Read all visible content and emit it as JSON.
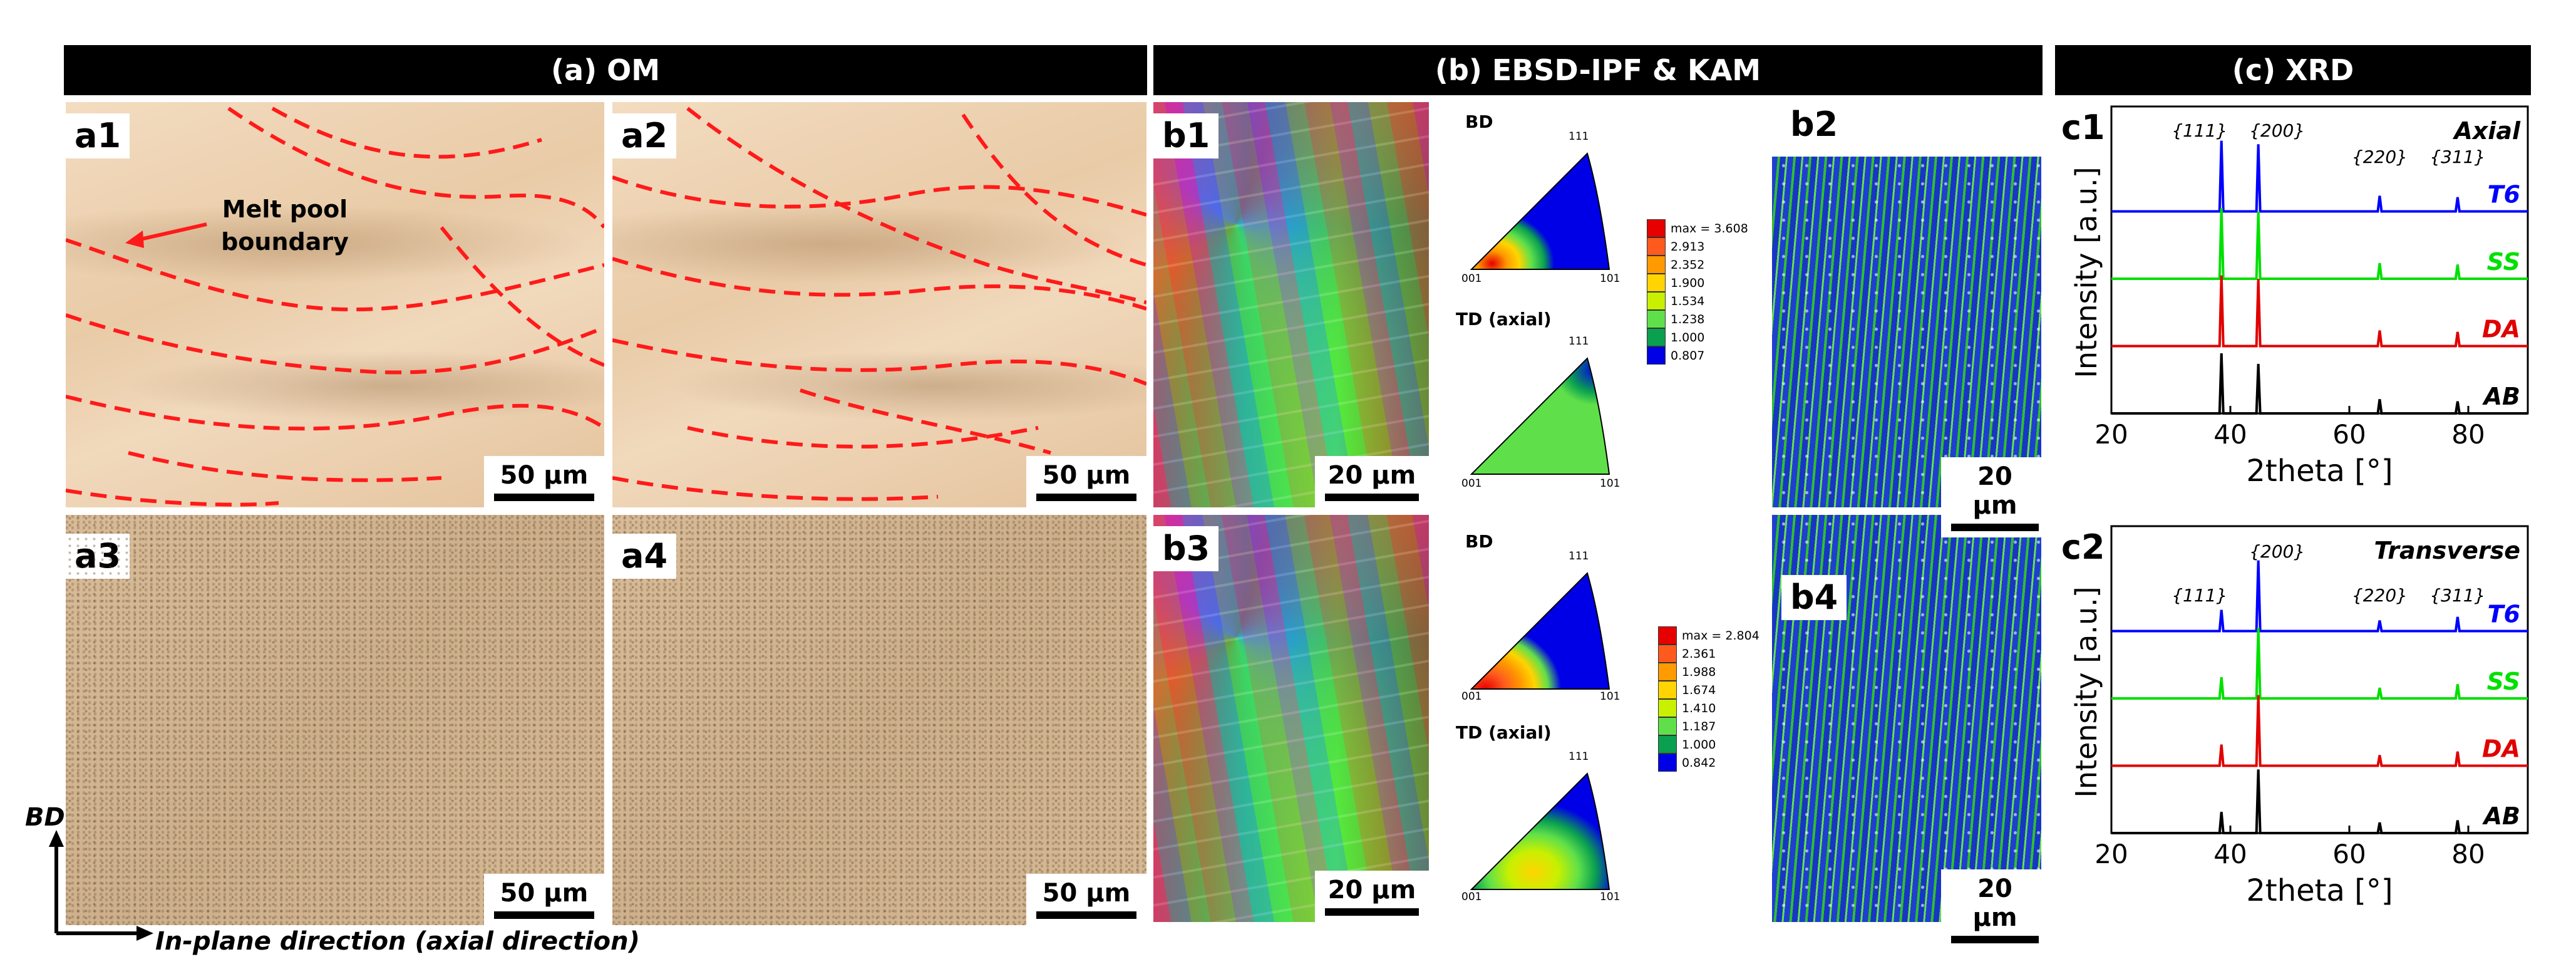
{
  "headers": {
    "om": "(a) OM",
    "ebsd": "(b) EBSD-IPF & KAM",
    "xrd": "(c) XRD"
  },
  "panels": {
    "a1": "a1",
    "a2": "a2",
    "a3": "a3",
    "a4": "a4",
    "b1": "b1",
    "b2": "b2",
    "b3": "b3",
    "b4": "b4",
    "c1": "c1",
    "c2": "c2"
  },
  "annotation": {
    "melt_pool": "Melt pool",
    "boundary": "boundary"
  },
  "scalebars": {
    "om": "50 µm",
    "ebsd": "20 µm"
  },
  "axes": {
    "bd": "BD",
    "in_plane": "In-plane direction (axial direction)"
  },
  "ipf": {
    "bd_label": "BD",
    "td_label": "TD (axial)",
    "corner_111": "111",
    "corner_001": "001",
    "corner_101": "101",
    "legend_top": {
      "entries": [
        "max = 3.608",
        "2.913",
        "2.352",
        "1.900",
        "1.534",
        "1.238",
        "1.000",
        "0.807"
      ]
    },
    "legend_bottom": {
      "entries": [
        "max = 2.804",
        "2.361",
        "1.988",
        "1.674",
        "1.410",
        "1.187",
        "1.000",
        "0.842"
      ]
    },
    "legend_colors": [
      "#e60000",
      "#ff5a1e",
      "#ff9a00",
      "#ffd400",
      "#c8f000",
      "#5fe04a",
      "#0aa050",
      "#0000e6"
    ]
  },
  "chart_data": [
    {
      "type": "line",
      "panel": "c1",
      "title": "Axial",
      "xlabel": "2theta [°]",
      "ylabel": "Intensity [a.u.]",
      "xlim": [
        20,
        90
      ],
      "xticks": [
        20,
        40,
        60,
        80
      ],
      "peak_labels": [
        "{111}",
        "{200}",
        "{220}",
        "{311}"
      ],
      "peaks_2theta": [
        38.5,
        44.7,
        65.1,
        78.2
      ],
      "series": [
        {
          "name": "T6",
          "color": "#0000ff",
          "peak_heights": [
            1.0,
            0.95,
            0.22,
            0.2
          ]
        },
        {
          "name": "SS",
          "color": "#00e000",
          "peak_heights": [
            1.0,
            0.95,
            0.22,
            0.2
          ]
        },
        {
          "name": "DA",
          "color": "#e00000",
          "peak_heights": [
            1.0,
            0.95,
            0.22,
            0.2
          ]
        },
        {
          "name": "AB",
          "color": "#000000",
          "peak_heights": [
            0.85,
            0.7,
            0.2,
            0.17
          ]
        }
      ]
    },
    {
      "type": "line",
      "panel": "c2",
      "title": "Transverse",
      "xlabel": "2theta [°]",
      "ylabel": "Intensity [a.u.]",
      "xlim": [
        20,
        90
      ],
      "xticks": [
        20,
        40,
        60,
        80
      ],
      "peak_labels": [
        "{111}",
        "{200}",
        "{220}",
        "{311}"
      ],
      "peaks_2theta": [
        38.5,
        44.7,
        65.1,
        78.2
      ],
      "series": [
        {
          "name": "T6",
          "color": "#0000ff",
          "peak_heights": [
            0.3,
            1.0,
            0.15,
            0.2
          ]
        },
        {
          "name": "SS",
          "color": "#00e000",
          "peak_heights": [
            0.3,
            1.0,
            0.15,
            0.2
          ]
        },
        {
          "name": "DA",
          "color": "#e00000",
          "peak_heights": [
            0.3,
            1.0,
            0.15,
            0.2
          ]
        },
        {
          "name": "AB",
          "color": "#000000",
          "peak_heights": [
            0.3,
            0.9,
            0.15,
            0.18
          ]
        }
      ]
    }
  ]
}
